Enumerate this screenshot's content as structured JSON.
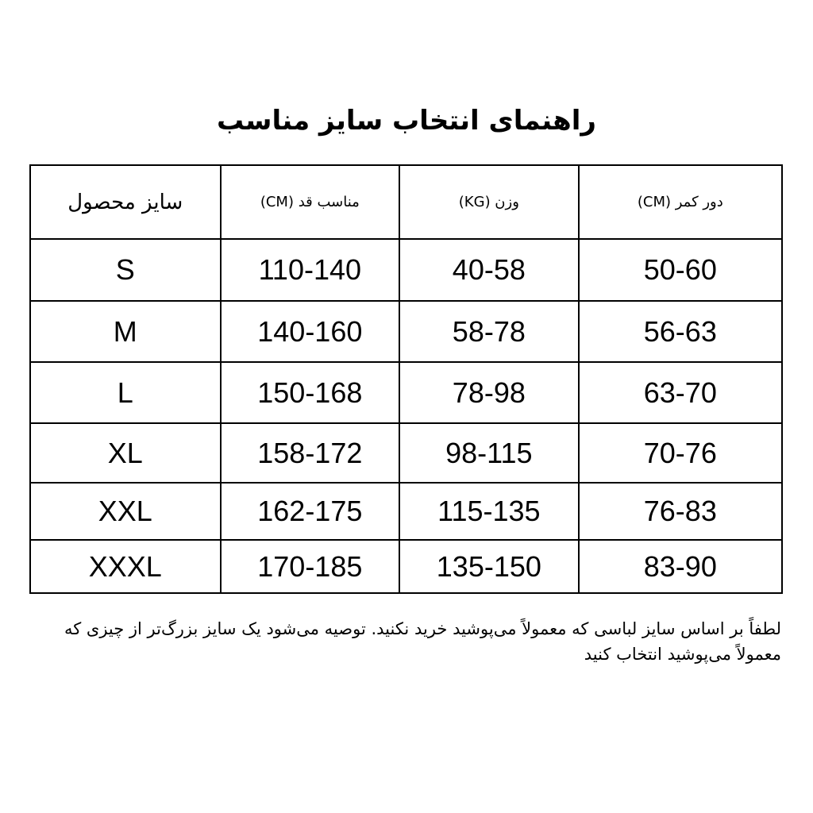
{
  "title": "راهنمای انتخاب سایز مناسب",
  "table": {
    "headers": [
      "سایز محصول",
      "مناسب قد (CM)",
      "وزن (KG)",
      "دور کمر (CM)"
    ],
    "rows": [
      [
        "S",
        "110-140",
        "40-58",
        "50-60"
      ],
      [
        "M",
        "140-160",
        "58-78",
        "56-63"
      ],
      [
        "L",
        "150-168",
        "78-98",
        "63-70"
      ],
      [
        "XL",
        "158-172",
        "98-115",
        "70-76"
      ],
      [
        "XXL",
        "162-175",
        "115-135",
        "76-83"
      ],
      [
        "XXXL",
        "170-185",
        "135-150",
        "83-90"
      ]
    ]
  },
  "note": "لطفاً بر اساس سایز لباسی که معمولاً می‌پوشید خرید نکنید. توصیه می‌شود یک سایز بزرگ‌تر از چیزی که معمولاً می‌پوشید انتخاب کنید"
}
